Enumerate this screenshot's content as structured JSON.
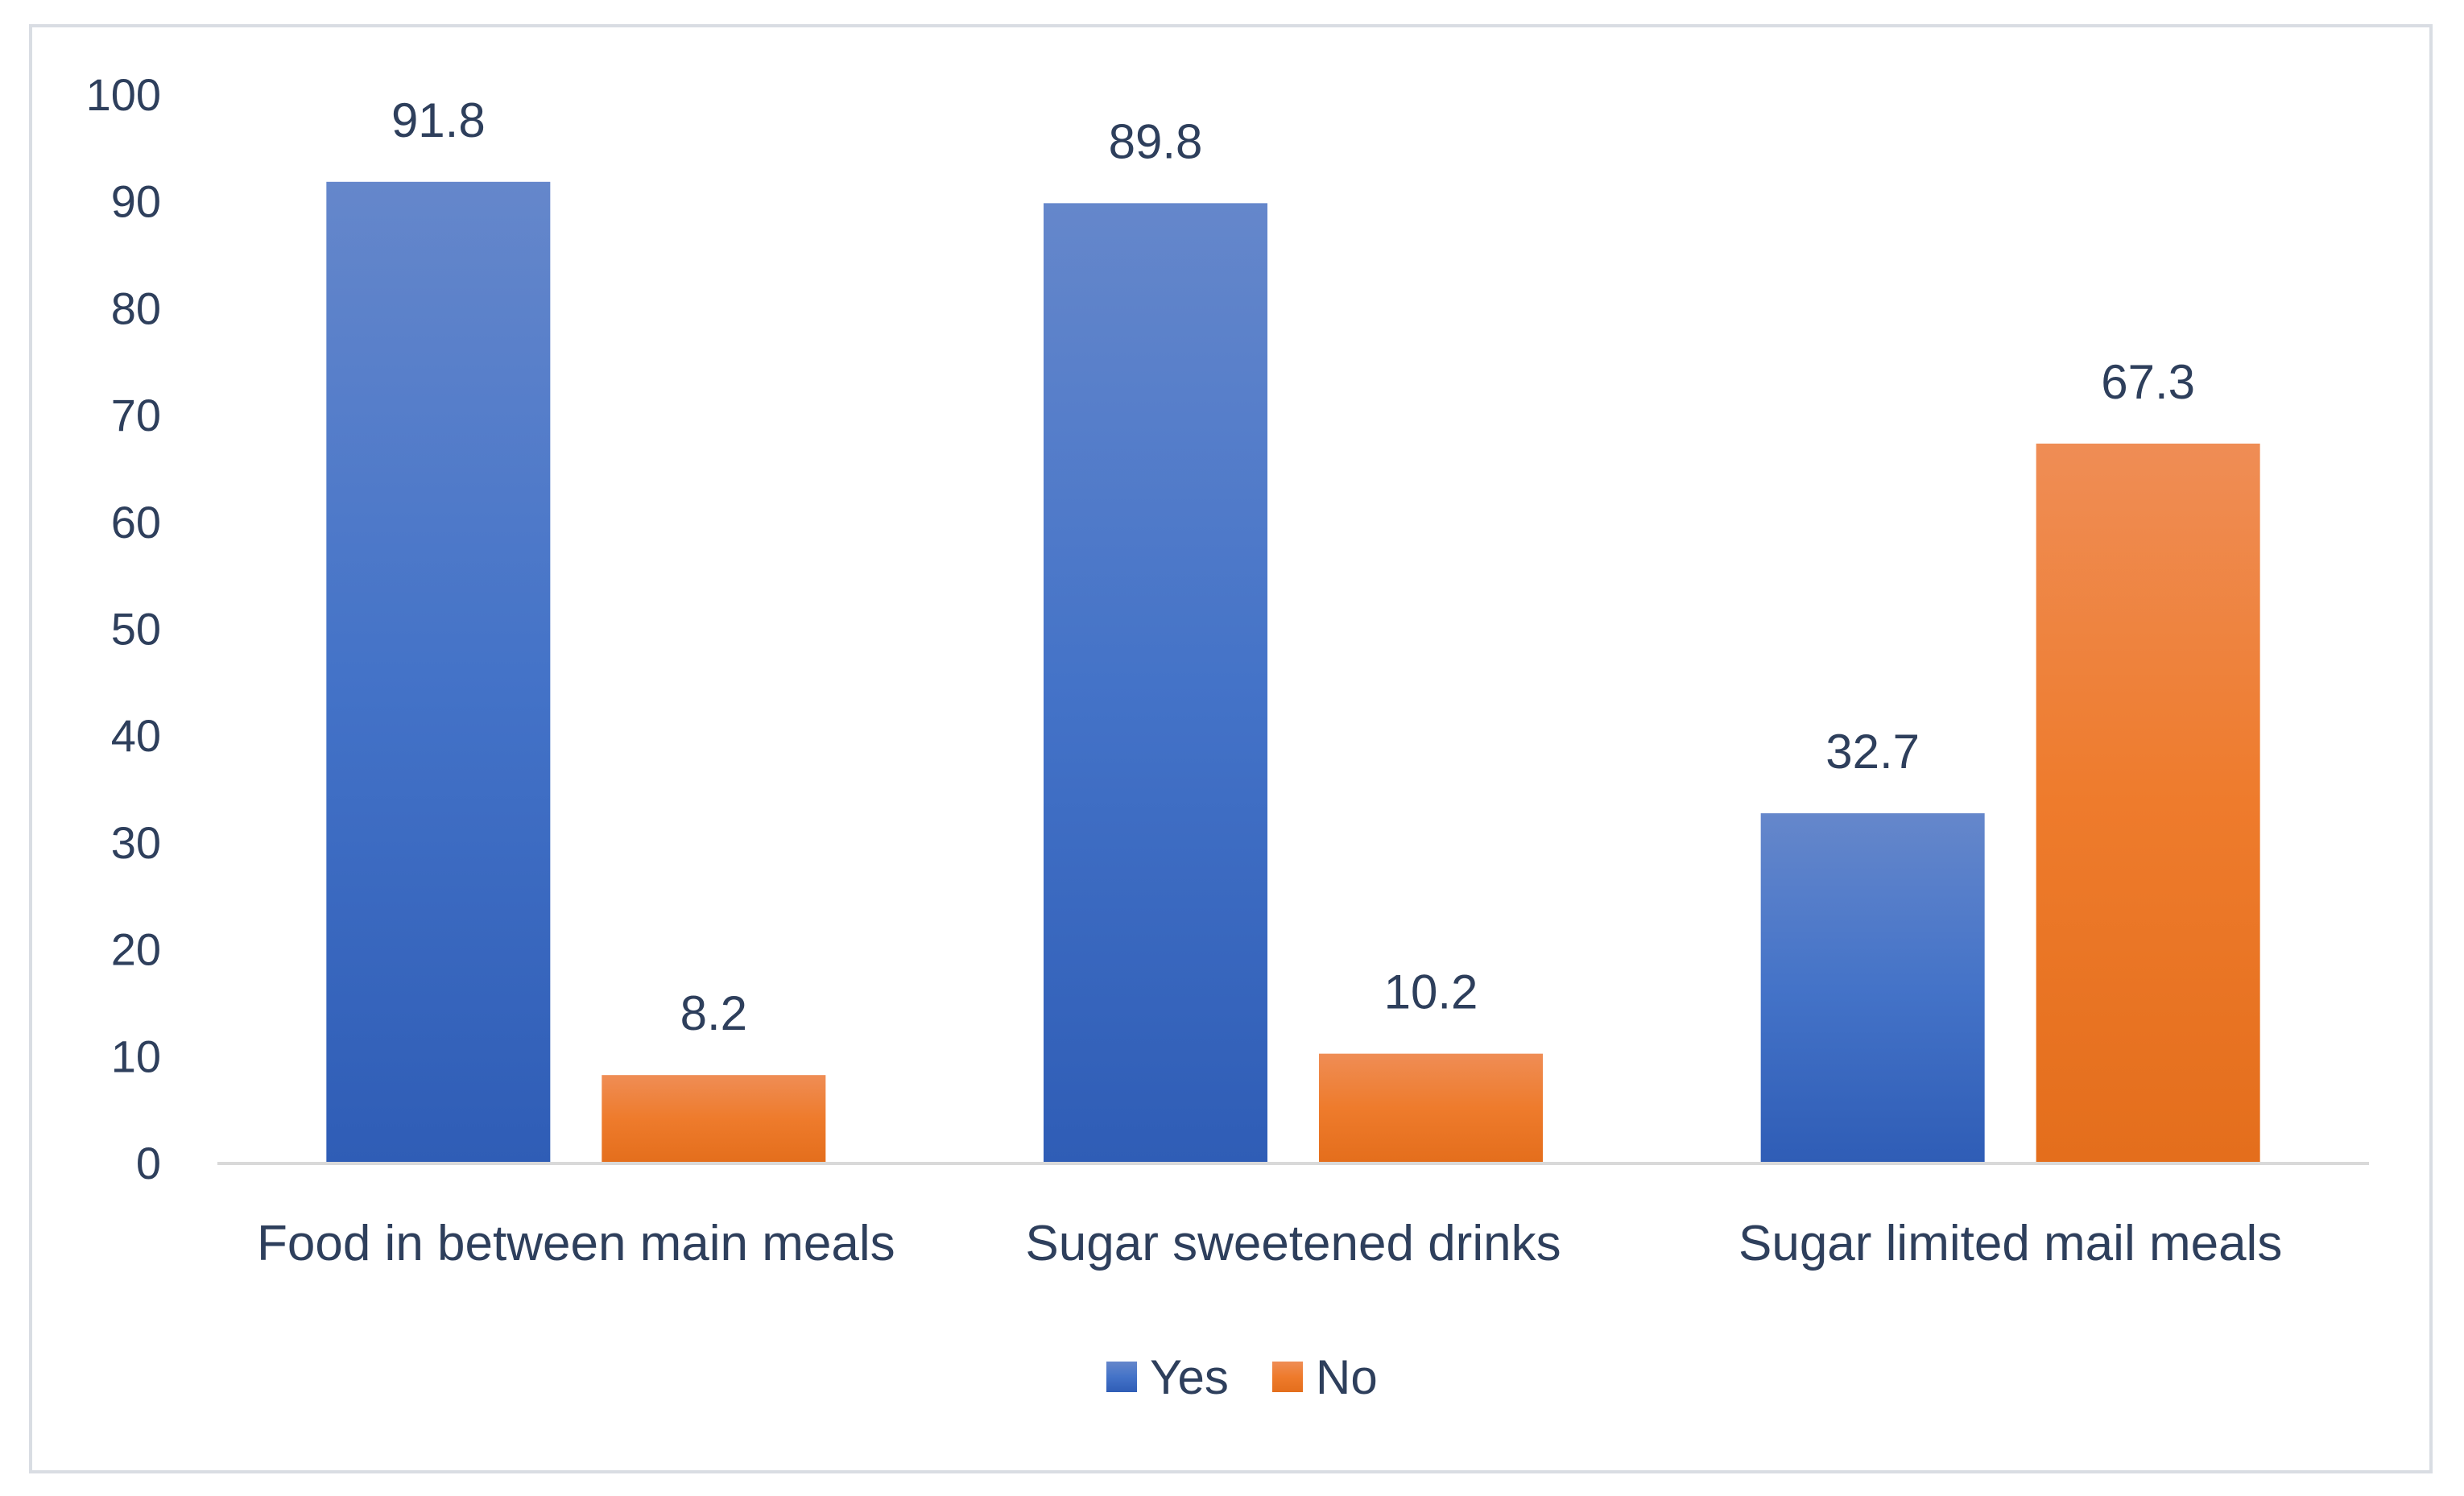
{
  "chart_data": {
    "type": "bar",
    "title": "",
    "xlabel": "",
    "ylabel": "",
    "ylim": [
      0,
      100
    ],
    "yticks": [
      0,
      10,
      20,
      30,
      40,
      50,
      60,
      70,
      80,
      90,
      100
    ],
    "grid": false,
    "legend_position": "bottom-center",
    "categories": [
      "Food in between main meals",
      "Sugar sweetened drinks",
      "Sugar limited mail meals"
    ],
    "series": [
      {
        "name": "Yes",
        "values": [
          91.8,
          89.8,
          32.7
        ],
        "labels": [
          "91.8",
          "89.8",
          "32.7"
        ],
        "color": "#4472c4"
      },
      {
        "name": "No",
        "values": [
          8.2,
          10.2,
          67.3
        ],
        "labels": [
          "8.2",
          "10.2",
          "67.3"
        ],
        "color": "#ed7d31"
      }
    ]
  }
}
